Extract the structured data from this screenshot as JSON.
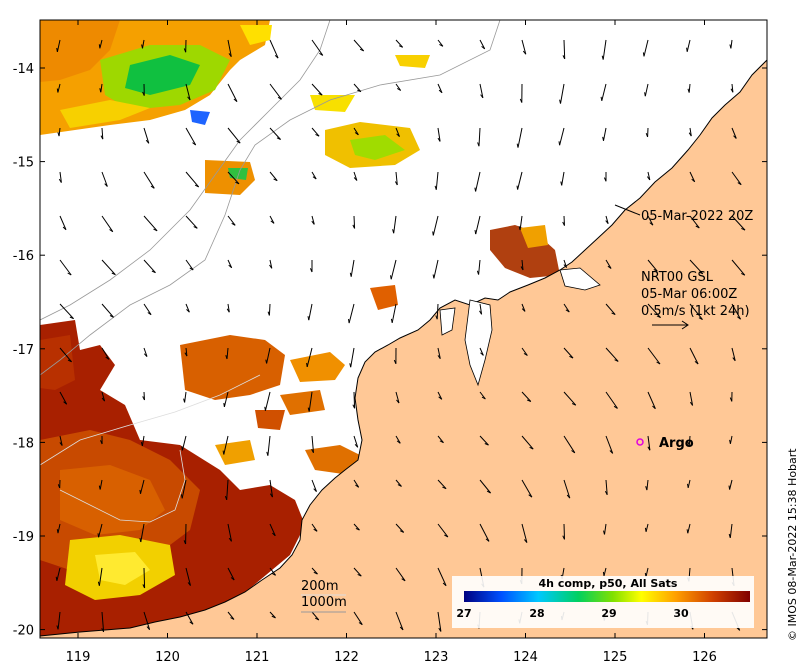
{
  "axes": {
    "lat_ticks": [
      "-14",
      "-15",
      "-16",
      "-17",
      "-18",
      "-19",
      "-20"
    ],
    "lon_ticks": [
      "119",
      "120",
      "121",
      "122",
      "123",
      "124",
      "125",
      "126"
    ]
  },
  "annotations": {
    "track_time": "05-Mar-2022 20Z",
    "current_product": "NRT00 GSL",
    "current_time": "05-Mar 06:00Z",
    "current_scale": "0.5m/s (1kt 24h)"
  },
  "argo_label": "Argo",
  "contours": {
    "depth_200": "200m",
    "depth_1000": "1000m"
  },
  "colorbar": {
    "title": "4h comp, p50, All Sats",
    "tick_labels": [
      "27",
      "28",
      "29",
      "30"
    ],
    "colors": [
      "#00007f",
      "#0050ff",
      "#00c8ff",
      "#00d060",
      "#80e000",
      "#ffff00",
      "#ffa000",
      "#d04000",
      "#800000"
    ]
  },
  "colors": {
    "land": "#ffc896",
    "ocean_nodata": "#ffffff",
    "argo_marker": "#e000e0"
  },
  "credit": "© IMOS 08-Mar-2022 15:38 Hobart"
}
